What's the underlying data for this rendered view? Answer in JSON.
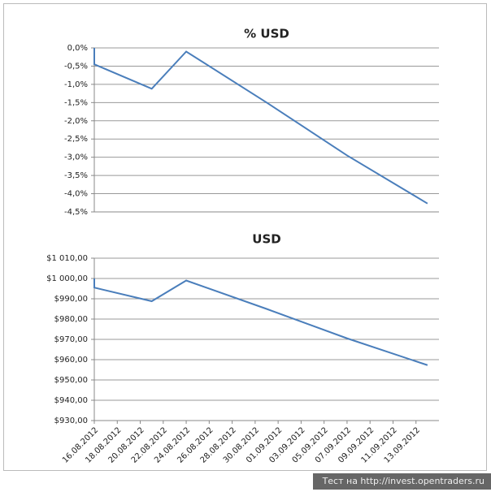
{
  "chart_data": [
    {
      "type": "line",
      "title": "% USD",
      "x": [
        "16.08.2012",
        "16.08.2012",
        "21.08.2012",
        "24.08.2012",
        "31.08.2012",
        "07.09.2012",
        "14.09.2012"
      ],
      "values": [
        0,
        -0.45,
        -1.12,
        -0.1,
        -1.5,
        -2.95,
        -4.27
      ],
      "color": "#4a7ebb",
      "xlim": [
        "16.08.2012",
        "15.09.2012"
      ],
      "ylim": [
        -4.5,
        0
      ],
      "yticks": [
        {
          "value": 0,
          "label": "0,0%"
        },
        {
          "value": -0.5,
          "label": "-0,5%"
        },
        {
          "value": -1,
          "label": "-1,0%"
        },
        {
          "value": -1.5,
          "label": "-1,5%"
        },
        {
          "value": -2,
          "label": "-2,0%"
        },
        {
          "value": -2.5,
          "label": "-2,5%"
        },
        {
          "value": -3,
          "label": "-3,0%"
        },
        {
          "value": -3.5,
          "label": "-3,5%"
        },
        {
          "value": -4,
          "label": "-4,0%"
        },
        {
          "value": -4.5,
          "label": "-4,5%"
        }
      ],
      "grid": true
    },
    {
      "type": "line",
      "title": "USD",
      "x": [
        "16.08.2012",
        "16.08.2012",
        "21.08.2012",
        "24.08.2012",
        "31.08.2012",
        "07.09.2012",
        "14.09.2012"
      ],
      "values": [
        1000,
        995.5,
        988.8,
        999,
        985,
        970.5,
        957.3
      ],
      "color": "#4a7ebb",
      "xlim": [
        "16.08.2012",
        "15.09.2012"
      ],
      "xticks": [
        "16.08.2012",
        "18.08.2012",
        "20.08.2012",
        "22.08.2012",
        "24.08.2012",
        "26.08.2012",
        "28.08.2012",
        "30.08.2012",
        "01.09.2012",
        "03.09.2012",
        "05.09.2012",
        "07.09.2012",
        "09.09.2012",
        "11.09.2012",
        "13.09.2012"
      ],
      "ylim": [
        930,
        1010
      ],
      "yticks": [
        {
          "value": 1010,
          "label": "$1 010,00"
        },
        {
          "value": 1000,
          "label": "$1 000,00"
        },
        {
          "value": 990,
          "label": "$990,00"
        },
        {
          "value": 980,
          "label": "$980,00"
        },
        {
          "value": 970,
          "label": "$970,00"
        },
        {
          "value": 960,
          "label": "$960,00"
        },
        {
          "value": 950,
          "label": "$950,00"
        },
        {
          "value": 940,
          "label": "$940,00"
        },
        {
          "value": 930,
          "label": "$930,00"
        }
      ],
      "grid": true
    }
  ],
  "footer": "Тест на http://invest.opentraders.ru"
}
